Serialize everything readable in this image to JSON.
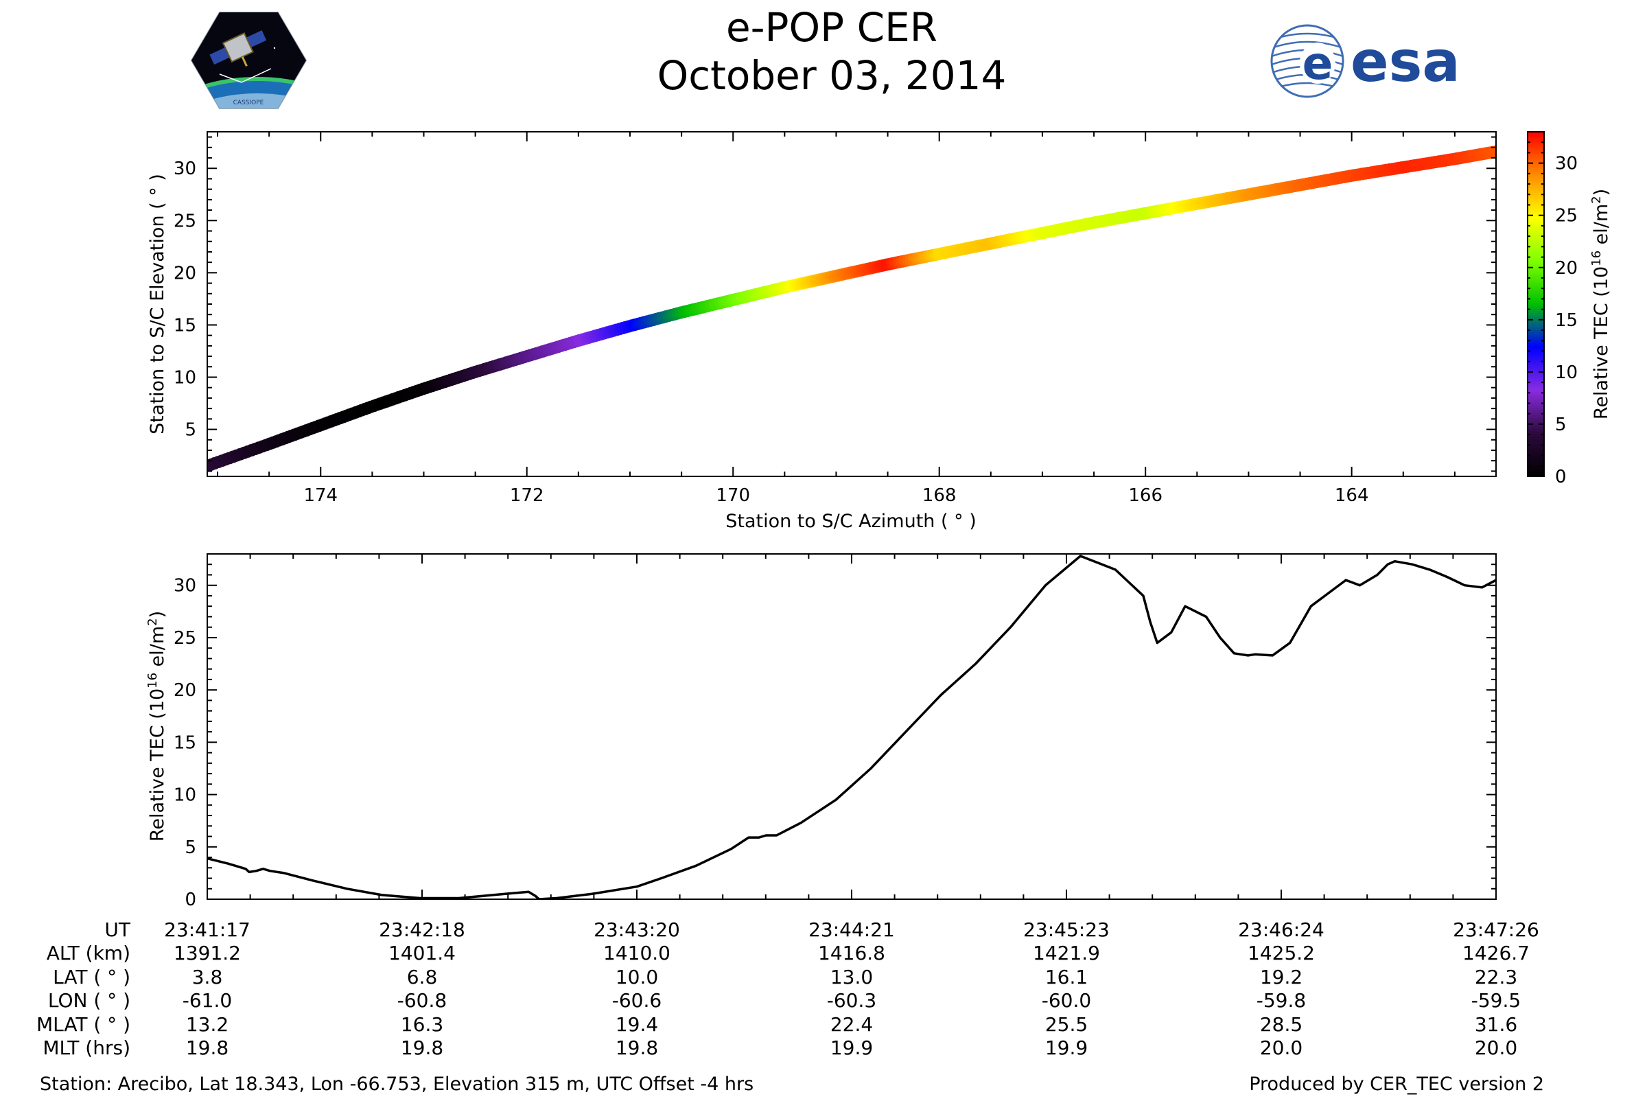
{
  "header": {
    "title": "e-POP CER",
    "date": "October 03, 2014",
    "left_logo_text": "CASSIOPE",
    "right_logo_text": "esa"
  },
  "colors": {
    "esa_blue": "#1f4b9a",
    "line": "#000000"
  },
  "colorbar": {
    "label_main": "Relative TEC (10",
    "label_exp": "16",
    "label_tail": " el/m",
    "label_sq": "2",
    "label_close": ")",
    "ticks": [
      "0",
      "5",
      "10",
      "15",
      "20",
      "25",
      "30"
    ],
    "stops": [
      "#000000",
      "#2c0a3c",
      "#8a2be2",
      "#0000ff",
      "#00c000",
      "#7fff00",
      "#ffff00",
      "#ff8c00",
      "#ff0000"
    ]
  },
  "chart_data": [
    {
      "type": "scatter",
      "title": "",
      "xlabel": "Station to S/C Azimuth ( ° )",
      "ylabel": "Station to S/C Elevation ( ° )",
      "xlim": [
        175.1,
        162.6
      ],
      "ylim": [
        0.5,
        33.5
      ],
      "xticks": [
        "174",
        "172",
        "170",
        "168",
        "166",
        "164"
      ],
      "yticks": [
        "5",
        "10",
        "15",
        "20",
        "25",
        "30"
      ],
      "color_by": "Relative TEC (10^16 el/m^2)",
      "clim": [
        0,
        33
      ],
      "azimuth": [
        175.1,
        174.5,
        174.0,
        173.5,
        173.0,
        172.5,
        172.0,
        171.5,
        171.0,
        170.5,
        170.0,
        169.5,
        169.0,
        168.5,
        168.0,
        167.5,
        167.0,
        166.5,
        166.0,
        165.5,
        165.0,
        164.5,
        164.0,
        163.5,
        163.0,
        162.6
      ],
      "elevation": [
        1.5,
        3.6,
        5.4,
        7.2,
        8.9,
        10.5,
        12.0,
        13.5,
        14.9,
        16.2,
        17.4,
        18.6,
        19.7,
        20.8,
        21.8,
        22.8,
        23.8,
        24.8,
        25.7,
        26.6,
        27.5,
        28.4,
        29.3,
        30.1,
        30.9,
        31.6
      ],
      "tec": [
        3.8,
        1.5,
        0.4,
        0.0,
        0.3,
        3.5,
        6.0,
        8.0,
        12.0,
        16.0,
        20.0,
        24.0,
        29.0,
        32.5,
        26.0,
        27.0,
        24.0,
        23.5,
        23.0,
        26.0,
        28.5,
        30.0,
        31.0,
        32.0,
        31.5,
        30.5
      ]
    },
    {
      "type": "line",
      "title": "",
      "xlabel": "",
      "ylabel": "Relative TEC (10^16 el/m^2)",
      "ylabel_main": "Relative TEC (10",
      "ylabel_exp": "16",
      "ylabel_tail": " el/m",
      "ylabel_sq": "2",
      "ylabel_close": ")",
      "xlim": [
        0,
        369
      ],
      "ylim": [
        0,
        33
      ],
      "yticks": [
        "0",
        "5",
        "10",
        "15",
        "20",
        "25",
        "30"
      ],
      "x_seconds": [
        0,
        6,
        11,
        12,
        14,
        16,
        18,
        22,
        30,
        40,
        50,
        61,
        72,
        85,
        92,
        94,
        95,
        100,
        110,
        123,
        130,
        140,
        150,
        155,
        158,
        160,
        163,
        170,
        180,
        184,
        190,
        200,
        210,
        220,
        230,
        240,
        250,
        260,
        268,
        270,
        272,
        276,
        280,
        286,
        290,
        294,
        298,
        300,
        305,
        310,
        316,
        320,
        326,
        330,
        335,
        338,
        340,
        345,
        350,
        355,
        360,
        365,
        369
      ],
      "tec": [
        3.9,
        3.4,
        2.9,
        2.6,
        2.7,
        2.9,
        2.7,
        2.5,
        1.8,
        1.0,
        0.4,
        0.1,
        0.1,
        0.5,
        0.7,
        0.3,
        0.0,
        0.1,
        0.5,
        1.2,
        2.0,
        3.2,
        4.8,
        5.9,
        5.9,
        6.1,
        6.1,
        7.3,
        9.5,
        10.7,
        12.5,
        16.0,
        19.5,
        22.5,
        26.0,
        30.0,
        32.8,
        31.5,
        29.0,
        26.5,
        24.5,
        25.5,
        28.0,
        27.0,
        25.0,
        23.5,
        23.3,
        23.4,
        23.3,
        24.5,
        28.0,
        29.0,
        30.5,
        30.0,
        31.0,
        32.0,
        32.3,
        32.0,
        31.5,
        30.8,
        30.0,
        29.8,
        30.5
      ],
      "time_ticks": [
        "23:41:17",
        "23:42:18",
        "23:43:20",
        "23:44:21",
        "23:45:23",
        "23:46:24",
        "23:47:26"
      ]
    }
  ],
  "table": {
    "row_labels": [
      "UT",
      "ALT (km)",
      "LAT ( ° )",
      "LON ( ° )",
      "MLAT ( ° )",
      "MLT (hrs)"
    ],
    "rows": [
      [
        "23:41:17",
        "23:42:18",
        "23:43:20",
        "23:44:21",
        "23:45:23",
        "23:46:24",
        "23:47:26"
      ],
      [
        "1391.2",
        "1401.4",
        "1410.0",
        "1416.8",
        "1421.9",
        "1425.2",
        "1426.7"
      ],
      [
        "3.8",
        "6.8",
        "10.0",
        "13.0",
        "16.1",
        "19.2",
        "22.3"
      ],
      [
        "-61.0",
        "-60.8",
        "-60.6",
        "-60.3",
        "-60.0",
        "-59.8",
        "-59.5"
      ],
      [
        "13.2",
        "16.3",
        "19.4",
        "22.4",
        "25.5",
        "28.5",
        "31.6"
      ],
      [
        "19.8",
        "19.8",
        "19.8",
        "19.9",
        "19.9",
        "20.0",
        "20.0"
      ]
    ]
  },
  "footer": {
    "station": "Station: Arecibo, Lat 18.343, Lon -66.753, Elevation 315 m, UTC Offset -4 hrs",
    "produced": "Produced by CER_TEC version 2"
  }
}
